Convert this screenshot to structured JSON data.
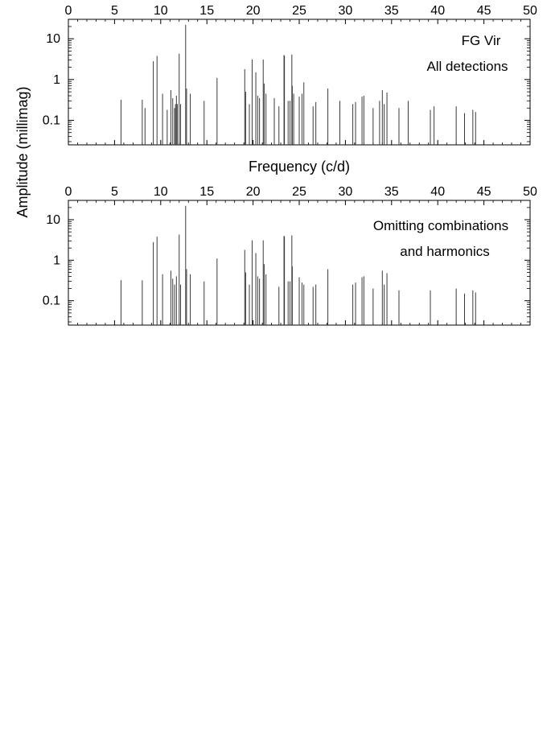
{
  "figure": {
    "shared_xlabel": "Frequency (c/d)",
    "shared_ylabel": "Amplitude (millimag)"
  },
  "chart_data": [
    {
      "type": "bar",
      "panel": "top",
      "annotations": [
        "FG Vir",
        "All detections"
      ],
      "xlim": [
        0,
        50
      ],
      "ylim": [
        0.025,
        30
      ],
      "yscale": "log",
      "x_ticks": [
        0,
        5,
        10,
        15,
        20,
        25,
        30,
        35,
        40,
        45,
        50
      ],
      "y_ticks": [
        0.1,
        1,
        10
      ],
      "y_tick_labels": [
        "0.1",
        "1",
        "10"
      ],
      "grid": false,
      "series": [
        {
          "x": [
            5.7,
            8.0,
            8.3,
            9.2,
            9.6,
            10.2,
            10.7,
            11.1,
            11.3,
            11.5,
            11.6,
            11.7,
            11.8,
            12.0,
            12.15,
            12.7,
            12.8,
            13.2,
            14.7,
            16.1,
            19.1,
            19.2,
            19.6,
            19.9,
            20.3,
            20.5,
            20.7,
            21.1,
            21.2,
            21.4,
            22.3,
            22.8,
            23.35,
            23.4,
            23.8,
            24.0,
            24.2,
            24.25,
            24.4,
            25.0,
            25.3,
            25.5,
            26.5,
            26.8,
            28.1,
            29.4,
            30.8,
            31.1,
            31.8,
            32.0,
            33.0,
            33.7,
            34.0,
            34.2,
            34.5,
            35.8,
            36.8,
            39.2,
            39.6,
            42.0,
            42.9,
            43.8,
            44.1
          ],
          "values": [
            0.32,
            0.32,
            0.2,
            2.8,
            3.8,
            0.45,
            0.18,
            0.55,
            0.35,
            0.2,
            0.25,
            0.4,
            0.25,
            4.3,
            0.25,
            22.0,
            0.6,
            0.45,
            0.3,
            1.1,
            1.8,
            0.5,
            0.25,
            3.1,
            1.5,
            0.4,
            0.35,
            3.1,
            0.8,
            0.45,
            0.35,
            0.22,
            4.0,
            3.8,
            0.3,
            0.3,
            4.1,
            0.7,
            0.45,
            0.38,
            0.45,
            0.85,
            0.22,
            0.28,
            0.6,
            0.3,
            0.25,
            0.28,
            0.38,
            0.4,
            0.2,
            0.3,
            0.55,
            0.25,
            0.48,
            0.2,
            0.3,
            0.18,
            0.22,
            0.22,
            0.15,
            0.18,
            0.16
          ]
        }
      ]
    },
    {
      "type": "bar",
      "panel": "bottom",
      "annotations": [
        "Omitting combinations",
        "and harmonics"
      ],
      "xlim": [
        0,
        50
      ],
      "ylim": [
        0.025,
        30
      ],
      "yscale": "log",
      "x_ticks": [
        0,
        5,
        10,
        15,
        20,
        25,
        30,
        35,
        40,
        45,
        50
      ],
      "y_ticks": [
        0.1,
        1,
        10
      ],
      "y_tick_labels": [
        "0.1",
        "1",
        "10"
      ],
      "grid": false,
      "series": [
        {
          "x": [
            5.7,
            8.0,
            9.2,
            9.6,
            10.2,
            11.1,
            11.3,
            11.5,
            11.7,
            12.0,
            12.15,
            12.7,
            12.8,
            13.2,
            14.7,
            16.1,
            19.1,
            19.2,
            19.6,
            19.9,
            20.3,
            20.5,
            20.7,
            21.1,
            21.2,
            21.4,
            22.8,
            23.35,
            23.4,
            23.8,
            24.0,
            24.2,
            24.25,
            25.0,
            25.3,
            25.5,
            26.5,
            26.8,
            28.1,
            30.8,
            31.1,
            31.8,
            32.0,
            33.0,
            34.0,
            34.2,
            34.5,
            35.8,
            39.2,
            42.0,
            42.9,
            43.8,
            44.1
          ],
          "values": [
            0.32,
            0.32,
            2.8,
            3.8,
            0.45,
            0.55,
            0.35,
            0.25,
            0.4,
            4.3,
            0.25,
            22.0,
            0.6,
            0.45,
            0.3,
            1.1,
            1.8,
            0.5,
            0.25,
            3.1,
            1.5,
            0.4,
            0.35,
            3.1,
            0.8,
            0.45,
            0.22,
            4.0,
            3.8,
            0.3,
            0.3,
            4.1,
            0.7,
            0.38,
            0.28,
            0.25,
            0.22,
            0.25,
            0.6,
            0.25,
            0.28,
            0.38,
            0.4,
            0.2,
            0.55,
            0.25,
            0.48,
            0.18,
            0.18,
            0.2,
            0.15,
            0.18,
            0.16
          ]
        }
      ]
    }
  ]
}
